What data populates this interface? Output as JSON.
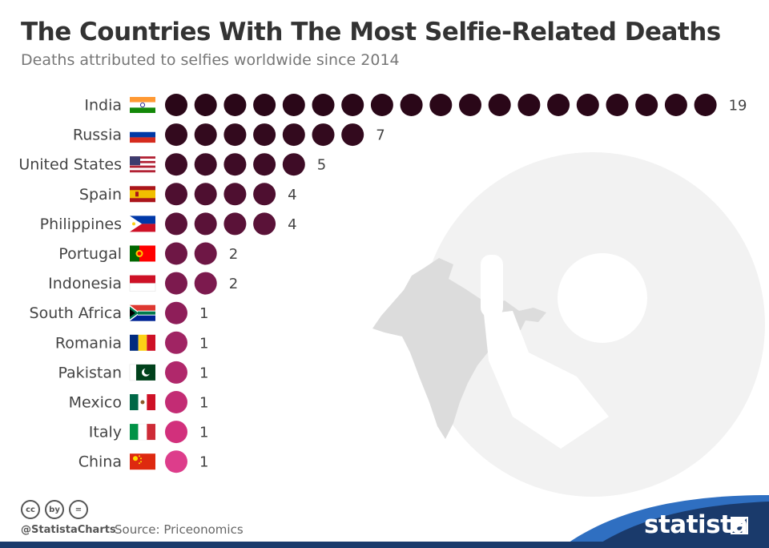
{
  "header": {
    "title": "The Countries With The Most Selfie-Related Deaths",
    "subtitle": "Deaths attributed to selfies worldwide since 2014"
  },
  "chart_data": {
    "type": "pictogram",
    "title": "The Countries With The Most Selfie-Related Deaths",
    "subtitle": "Deaths attributed to selfies worldwide since 2014",
    "categories": [
      "India",
      "Russia",
      "United States",
      "Spain",
      "Philippines",
      "Portugal",
      "Indonesia",
      "South Africa",
      "Romania",
      "Pakistan",
      "Mexico",
      "Italy",
      "China"
    ],
    "values": [
      19,
      7,
      5,
      4,
      4,
      2,
      2,
      1,
      1,
      1,
      1,
      1,
      1
    ],
    "dot_colors": [
      "#2a0718",
      "#330a1e",
      "#3e0c26",
      "#4e0f30",
      "#5a1238",
      "#6e1745",
      "#7c1a4e",
      "#8e1e59",
      "#a02463",
      "#b0286b",
      "#c32c74",
      "#d2307c",
      "#dd3d8b"
    ]
  },
  "footer": {
    "handle": "@StatistaCharts",
    "source": "Source: Priceonomics",
    "brand": "statista",
    "license_icons": [
      "cc",
      "by",
      "="
    ]
  },
  "colors": {
    "title": "#333333",
    "subtitle": "#777777",
    "brand_band": "#1a3a6b",
    "brand_accent": "#2f6fc1"
  }
}
